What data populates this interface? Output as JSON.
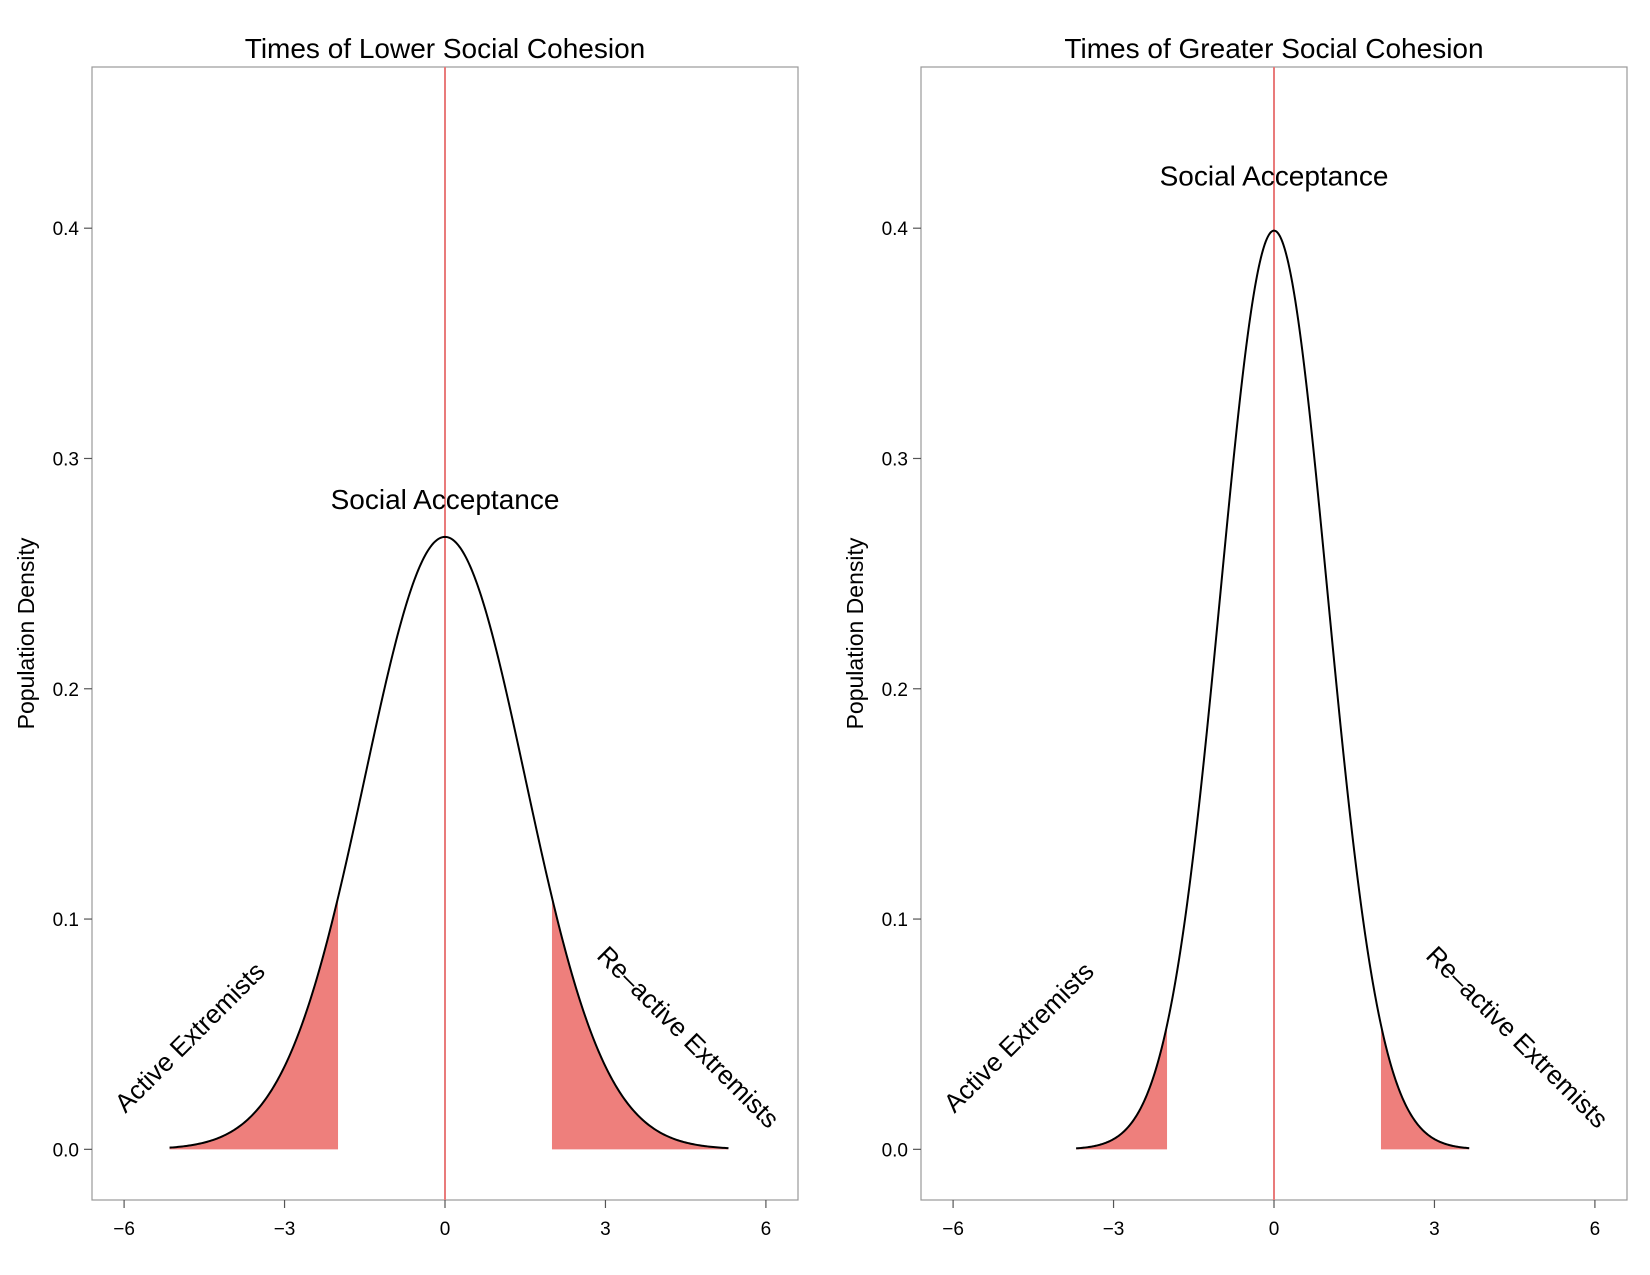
{
  "chart_data": [
    {
      "type": "area",
      "title": "Times of Lower Social Cohesion",
      "xlabel": "",
      "ylabel": "Population Density",
      "xlim": [
        -6.6,
        6.6
      ],
      "ylim": [
        -0.022,
        0.47
      ],
      "xticks": [
        -6,
        -3,
        0,
        3,
        6
      ],
      "xtick_labels": [
        "−6",
        "−3",
        "0",
        "3",
        "6"
      ],
      "yticks": [
        0.0,
        0.1,
        0.2,
        0.3,
        0.4
      ],
      "ytick_labels": [
        "0.0",
        "0.1",
        "0.2",
        "0.3",
        "0.4"
      ],
      "grid": false,
      "distribution": {
        "family": "normal",
        "mean": 0,
        "sd": 1.5,
        "x_range": [
          -5.15,
          5.3
        ],
        "peak": 0.266
      },
      "mean_line": {
        "x": 0,
        "color": "#e97b7b"
      },
      "shaded_tails": [
        {
          "name": "Active Extremists",
          "from": -5.15,
          "to": -2.0
        },
        {
          "name": "Re–active Extremists",
          "from": 2.0,
          "to": 5.3
        }
      ],
      "annotations": {
        "center": "Social Acceptance",
        "left_tail": "Active Extremists",
        "right_tail": "Re–active Extremists"
      },
      "colors": {
        "curve": "#000000",
        "fill": "#ee7f7c",
        "mean_line": "#e97b7b",
        "frame": "#999999"
      }
    },
    {
      "type": "area",
      "title": "Times of Greater Social Cohesion",
      "xlabel": "",
      "ylabel": "Population Density",
      "xlim": [
        -6.6,
        6.6
      ],
      "ylim": [
        -0.022,
        0.47
      ],
      "xticks": [
        -6,
        -3,
        0,
        3,
        6
      ],
      "xtick_labels": [
        "−6",
        "−3",
        "0",
        "3",
        "6"
      ],
      "yticks": [
        0.0,
        0.1,
        0.2,
        0.3,
        0.4
      ],
      "ytick_labels": [
        "0.0",
        "0.1",
        "0.2",
        "0.3",
        "0.4"
      ],
      "grid": false,
      "distribution": {
        "family": "normal",
        "mean": 0,
        "sd": 1.0,
        "x_range": [
          -3.7,
          3.65
        ],
        "peak": 0.399
      },
      "mean_line": {
        "x": 0,
        "color": "#e97b7b"
      },
      "shaded_tails": [
        {
          "name": "Active Extremists",
          "from": -3.7,
          "to": -2.0
        },
        {
          "name": "Re–active Extremists",
          "from": 2.0,
          "to": 3.65
        }
      ],
      "annotations": {
        "center": "Social Acceptance",
        "left_tail": "Active Extremists",
        "right_tail": "Re–active Extremists"
      },
      "colors": {
        "curve": "#000000",
        "fill": "#ee7f7c",
        "mean_line": "#e97b7b",
        "frame": "#999999"
      }
    }
  ]
}
